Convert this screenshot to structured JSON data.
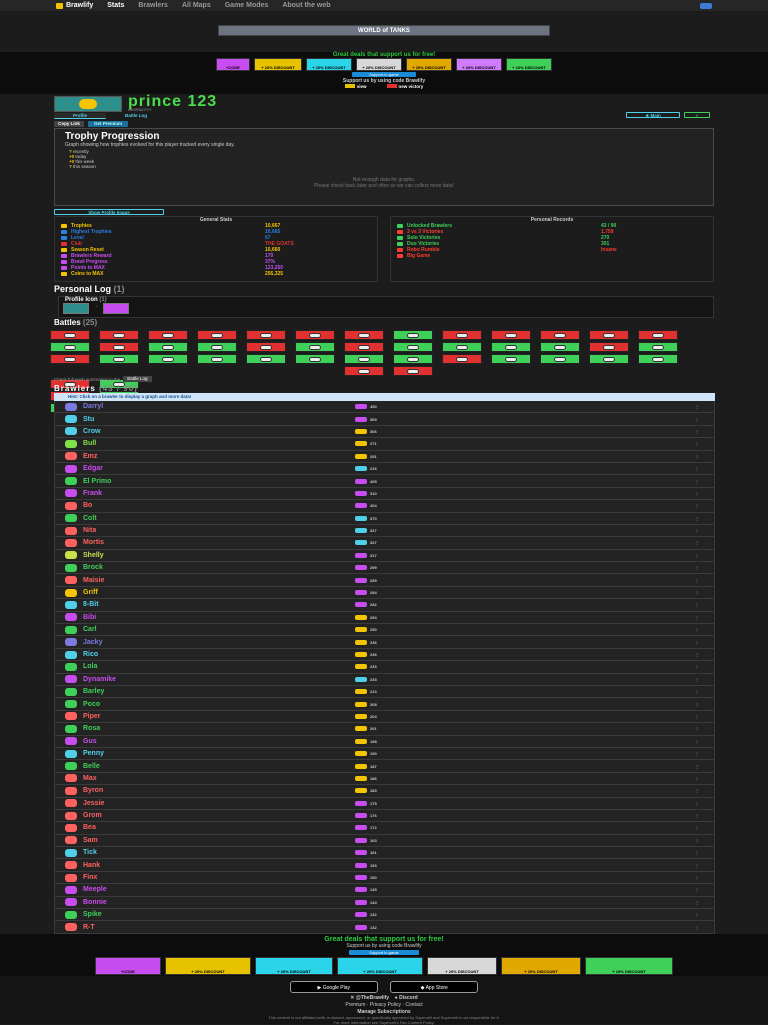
{
  "nav": {
    "brand": "Brawlify",
    "links": [
      "Stats",
      "Brawlers",
      "All Maps",
      "Game Modes",
      "About the web"
    ]
  },
  "ad": {
    "label": "WORLD of TANKS"
  },
  "deals_top": {
    "caption": "Great deals that support us for free!",
    "tiles": [
      {
        "label": "+CODE",
        "color": "#c84df0"
      },
      {
        "label": "+ 20% DISCOUNT",
        "color": "#e6c200"
      },
      {
        "label": "+ 20% DISCOUNT",
        "color": "#2bd4e8"
      },
      {
        "label": "+ 20% DISCOUNT",
        "color": "#d8d8d8"
      },
      {
        "label": "+ 20% DISCOUNT",
        "color": "#e0a800"
      },
      {
        "label": "+ 20% DISCOUNT",
        "color": "#cf7aff"
      },
      {
        "label": "+ 10% DISCOUNT",
        "color": "#3fd05a"
      }
    ],
    "support_button": "Support in-game",
    "support_caption": "Support us by using code Brawlify",
    "links": [
      "view",
      "new victory"
    ]
  },
  "profile": {
    "name": "prince 123",
    "tag": "#9GR8UYYY",
    "tabs": [
      "Profile",
      "Battle Log"
    ],
    "buttons": [
      "Copy Link",
      "Get Premium"
    ],
    "main_button": "Main"
  },
  "trophy": {
    "title": "Trophy Progression",
    "subtitle": "Graph showing how trophies evolved for this player tracked every single day.",
    "periods": [
      {
        "sign": "?",
        "label": "recently"
      },
      {
        "sign": "+0",
        "label": "today"
      },
      {
        "sign": "+0",
        "label": "this week"
      },
      {
        "sign": "?",
        "label": "this season"
      }
    ],
    "message_1": "Not enough data for graphs.",
    "message_2": "Please check back later and often so we can collect more data!"
  },
  "show_image": "Show Profile Image",
  "general_stats": {
    "title": "General Stats",
    "rows": [
      {
        "label": "Trophies",
        "value": "10,667",
        "color": "#f5c400"
      },
      {
        "label": "Highest Trophies",
        "value": "10,665",
        "color": "#2a7fe0"
      },
      {
        "label": "Level",
        "value": "67",
        "color": "#2a7fe0"
      },
      {
        "label": "Club",
        "value": "THE GOATS",
        "color": "#e03030"
      },
      {
        "label": "Season Reset",
        "value": "10,660",
        "color": "#f5c400"
      },
      {
        "label": "Brawlers Reward",
        "value": "170",
        "color": "#c84df0"
      },
      {
        "label": "Brawl Progress",
        "value": "37%",
        "color": "#c84df0"
      },
      {
        "label": "Points to MAX",
        "value": "123,250",
        "color": "#c84df0"
      },
      {
        "label": "Coins to MAX",
        "value": "256,325",
        "color": "#f5c400"
      }
    ]
  },
  "personal_records": {
    "title": "Personal Records",
    "rows": [
      {
        "label": "Unlocked Brawlers",
        "value": "43 / 90",
        "color": "#3fd05a"
      },
      {
        "label": "3 vs 3 Victories",
        "value": "1,759",
        "color": "#ff3b30"
      },
      {
        "label": "Solo Victories",
        "value": "270",
        "color": "#3fd05a"
      },
      {
        "label": "Duo Victories",
        "value": "301",
        "color": "#3fd05a"
      },
      {
        "label": "Robo Rumble",
        "value": "Insane",
        "color": "#ff3b30"
      },
      {
        "label": "Big Game",
        "value": "",
        "color": "#ff3b30"
      }
    ]
  },
  "personal_log": {
    "title": "Personal Log",
    "count": "(1)",
    "icon_title": "Profile Icon",
    "icon_count": "(1)"
  },
  "battles": {
    "title": "Battles",
    "count": "(25)"
  },
  "check_push": {
    "text": "Check full push summaries in the",
    "button": "Battle Log"
  },
  "brawlers": {
    "title": "Brawlers",
    "count": "(43 / 90)",
    "hint": "Hint: Click on a brawler to display a graph and more data!",
    "list": [
      {
        "name": "Darryl",
        "trophies": "450",
        "color": "#7a7ae0",
        "trcol": "#c84df0"
      },
      {
        "name": "Stu",
        "trophies": "369",
        "color": "#4fd0e8",
        "trcol": "#c84df0"
      },
      {
        "name": "Crow",
        "trophies": "306",
        "color": "#4fd0e8",
        "trcol": "#f5c400"
      },
      {
        "name": "Bull",
        "trophies": "271",
        "color": "#7fe04a",
        "trcol": "#f5c400"
      },
      {
        "name": "Emz",
        "trophies": "251",
        "color": "#ff6060",
        "trcol": "#f5c400"
      },
      {
        "name": "Edgar",
        "trophies": "216",
        "color": "#c84df0",
        "trcol": "#4fd0e8"
      },
      {
        "name": "El Primo",
        "trophies": "405",
        "color": "#3fd05a",
        "trcol": "#c84df0"
      },
      {
        "name": "Frank",
        "trophies": "310",
        "color": "#c84df0",
        "trcol": "#c84df0"
      },
      {
        "name": "Bo",
        "trophies": "404",
        "color": "#ff6060",
        "trcol": "#c84df0"
      },
      {
        "name": "Colt",
        "trophies": "370",
        "color": "#3fd05a",
        "trcol": "#4fd0e8"
      },
      {
        "name": "Nita",
        "trophies": "327",
        "color": "#ff6060",
        "trcol": "#4fd0e8"
      },
      {
        "name": "Mortis",
        "trophies": "327",
        "color": "#ff6060",
        "trcol": "#4fd0e8"
      },
      {
        "name": "Shelly",
        "trophies": "317",
        "color": "#c8e04a",
        "trcol": "#c84df0"
      },
      {
        "name": "Brock",
        "trophies": "299",
        "color": "#3fd05a",
        "trcol": "#c84df0"
      },
      {
        "name": "Maisie",
        "trophies": "289",
        "color": "#ff6060",
        "trcol": "#c84df0"
      },
      {
        "name": "Griff",
        "trophies": "284",
        "color": "#f5c400",
        "trcol": "#c84df0"
      },
      {
        "name": "8-Bit",
        "trophies": "282",
        "color": "#4fd0e8",
        "trcol": "#c84df0"
      },
      {
        "name": "Bibi",
        "trophies": "254",
        "color": "#c84df0",
        "trcol": "#f5c400"
      },
      {
        "name": "Carl",
        "trophies": "250",
        "color": "#3fd05a",
        "trcol": "#f5c400"
      },
      {
        "name": "Jacky",
        "trophies": "236",
        "color": "#7a7ae0",
        "trcol": "#f5c400"
      },
      {
        "name": "Rico",
        "trophies": "236",
        "color": "#4fd0e8",
        "trcol": "#f5c400"
      },
      {
        "name": "Lola",
        "trophies": "233",
        "color": "#3fd05a",
        "trcol": "#f5c400"
      },
      {
        "name": "Dynamike",
        "trophies": "233",
        "color": "#c84df0",
        "trcol": "#4fd0e8"
      },
      {
        "name": "Barley",
        "trophies": "213",
        "color": "#3fd05a",
        "trcol": "#f5c400"
      },
      {
        "name": "Poco",
        "trophies": "208",
        "color": "#3fd05a",
        "trcol": "#f5c400"
      },
      {
        "name": "Piper",
        "trophies": "204",
        "color": "#ff6060",
        "trcol": "#f5c400"
      },
      {
        "name": "Rosa",
        "trophies": "201",
        "color": "#3fd05a",
        "trcol": "#f5c400"
      },
      {
        "name": "Gus",
        "trophies": "198",
        "color": "#c84df0",
        "trcol": "#f5c400"
      },
      {
        "name": "Penny",
        "trophies": "190",
        "color": "#4fd0e8",
        "trcol": "#f5c400"
      },
      {
        "name": "Belle",
        "trophies": "187",
        "color": "#3fd05a",
        "trcol": "#f5c400"
      },
      {
        "name": "Max",
        "trophies": "186",
        "color": "#ff6060",
        "trcol": "#f5c400"
      },
      {
        "name": "Byron",
        "trophies": "183",
        "color": "#ff6060",
        "trcol": "#f5c400"
      },
      {
        "name": "Jessie",
        "trophies": "175",
        "color": "#ff6060",
        "trcol": "#c84df0"
      },
      {
        "name": "Grom",
        "trophies": "176",
        "color": "#ff6060",
        "trcol": "#c84df0"
      },
      {
        "name": "Bea",
        "trophies": "172",
        "color": "#ff6060",
        "trcol": "#c84df0"
      },
      {
        "name": "Sam",
        "trophies": "163",
        "color": "#ff6060",
        "trcol": "#c84df0"
      },
      {
        "name": "Tick",
        "trophies": "161",
        "color": "#4fd0e8",
        "trcol": "#c84df0"
      },
      {
        "name": "Hank",
        "trophies": "153",
        "color": "#ff6060",
        "trcol": "#c84df0"
      },
      {
        "name": "Finx",
        "trophies": "150",
        "color": "#ff6060",
        "trcol": "#c84df0"
      },
      {
        "name": "Meeple",
        "trophies": "145",
        "color": "#c84df0",
        "trcol": "#c84df0"
      },
      {
        "name": "Bonnie",
        "trophies": "144",
        "color": "#c84df0",
        "trcol": "#c84df0"
      },
      {
        "name": "Spike",
        "trophies": "132",
        "color": "#3fd05a",
        "trcol": "#c84df0"
      },
      {
        "name": "R-T",
        "trophies": "132",
        "color": "#ff6060",
        "trcol": "#c84df0"
      }
    ]
  },
  "deals_bottom": {
    "caption": "Great deals that support us for free!",
    "sub": "Support us by using code Brawlify",
    "button": "Support in-game",
    "tiles": [
      {
        "label": "+CODE",
        "color": "#c84df0"
      },
      {
        "label": "+ 20% DISCOUNT",
        "color": "#e6c200"
      },
      {
        "label": "+ 20% DISCOUNT",
        "color": "#2bd4e8"
      },
      {
        "label": "+ 20% DISCOUNT",
        "color": "#2bd4e8"
      },
      {
        "label": "+ 20% DISCOUNT",
        "color": "#d8d8d8"
      },
      {
        "label": "+ 20% DISCOUNT",
        "color": "#e0a800"
      },
      {
        "label": "+ 10% DISCOUNT",
        "color": "#3fd05a"
      }
    ]
  },
  "footer": {
    "stores": [
      "Google Play",
      "App Store"
    ],
    "social": [
      "@TheBrawlify",
      "Discord"
    ],
    "links": "Premium · Privacy Policy · Contact",
    "manage": "Manage Subscriptions",
    "disclaimer_1": "This content is not affiliated with, endorsed, sponsored, or specifically approved by Supercell and Supercell is not responsible for it.",
    "disclaimer_2": "For more information see Supercell's Fan Content Policy."
  }
}
